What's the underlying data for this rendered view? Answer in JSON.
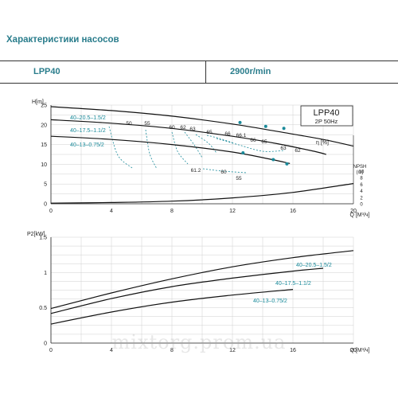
{
  "page": {
    "title": "Характеристики насосов",
    "model": "LPP40",
    "speed": "2900r/min",
    "watermark": "mixtorg.prom.ua"
  },
  "chart_data": [
    {
      "type": "line",
      "model_label": "LPP40",
      "sub_label": "2P 50Hz",
      "y_label": "H[m]",
      "x_label": "Q [M³/ч]",
      "eta_label": "η [%]",
      "npsh_label": "NPSH (m)",
      "xlim": [
        0,
        20
      ],
      "ylim": [
        0,
        25
      ],
      "x_ticks": [
        0,
        4,
        8,
        12,
        16,
        20
      ],
      "y_ticks": [
        0,
        5,
        10,
        15,
        20,
        25
      ],
      "npsh_ticks": [
        0,
        2,
        4,
        6,
        8,
        10
      ],
      "series": [
        {
          "name": "40–20.5–1.5/2",
          "color": "#111111",
          "points": [
            [
              0,
              24.6
            ],
            [
              4,
              23.6
            ],
            [
              8,
              22.2
            ],
            [
              12,
              20.2
            ],
            [
              15,
              18.3
            ],
            [
              18,
              16.3
            ],
            [
              20,
              14.6
            ]
          ]
        },
        {
          "name": "40–17.5–1.1/2",
          "color": "#111111",
          "points": [
            [
              0,
              21.3
            ],
            [
              4,
              20.4
            ],
            [
              8,
              19.1
            ],
            [
              12,
              17.1
            ],
            [
              15,
              15.2
            ],
            [
              17.5,
              13.2
            ],
            [
              18.2,
              12.5
            ]
          ]
        },
        {
          "name": "40–13–0.75/2",
          "color": "#111111",
          "points": [
            [
              0,
              17.1
            ],
            [
              4,
              16.3
            ],
            [
              8,
              15
            ],
            [
              12,
              13.1
            ],
            [
              14.5,
              11.3
            ],
            [
              15.8,
              10.2
            ]
          ]
        }
      ],
      "npsh_curve": {
        "color": "#111111",
        "points": [
          [
            0,
            0.2
          ],
          [
            4,
            0.4
          ],
          [
            8,
            0.8
          ],
          [
            12,
            1.8
          ],
          [
            16,
            3.5
          ],
          [
            20,
            6.2
          ]
        ]
      },
      "efficiency_labels": [
        "50",
        "55",
        "60",
        "62",
        "63",
        "65",
        "66",
        "66.1",
        "66",
        "65",
        "63",
        "62",
        "61.2",
        "60",
        "55"
      ],
      "efficiency_color": "#1a8a9a",
      "efficiency_dots": [
        [
          12.5,
          20.6
        ],
        [
          14.2,
          19.6
        ],
        [
          15.4,
          19.1
        ],
        [
          12.7,
          12.9
        ],
        [
          14.7,
          11.2
        ],
        [
          15.6,
          10.1
        ]
      ]
    },
    {
      "type": "line",
      "y_label": "P2[kW]",
      "x_label": "Q [M³/ч]",
      "xlim": [
        0,
        20
      ],
      "ylim": [
        0,
        1.5
      ],
      "x_ticks": [
        0,
        4,
        8,
        12,
        16,
        20
      ],
      "y_ticks": [
        0,
        0.5,
        1.0,
        1.5
      ],
      "series": [
        {
          "name": "40–20.5–1.5/2",
          "color": "#111111",
          "points": [
            [
              0,
              0.49
            ],
            [
              4,
              0.71
            ],
            [
              8,
              0.91
            ],
            [
              12,
              1.08
            ],
            [
              16,
              1.21
            ],
            [
              20,
              1.31
            ]
          ]
        },
        {
          "name": "40–17.5–1.1/2",
          "color": "#111111",
          "points": [
            [
              0,
              0.42
            ],
            [
              4,
              0.63
            ],
            [
              8,
              0.8
            ],
            [
              12,
              0.92
            ],
            [
              16,
              1.02
            ],
            [
              18,
              1.06
            ]
          ]
        },
        {
          "name": "40–13–0.75/2",
          "color": "#111111",
          "points": [
            [
              0,
              0.27
            ],
            [
              4,
              0.44
            ],
            [
              8,
              0.58
            ],
            [
              12,
              0.68
            ],
            [
              16,
              0.76
            ]
          ]
        }
      ]
    }
  ]
}
